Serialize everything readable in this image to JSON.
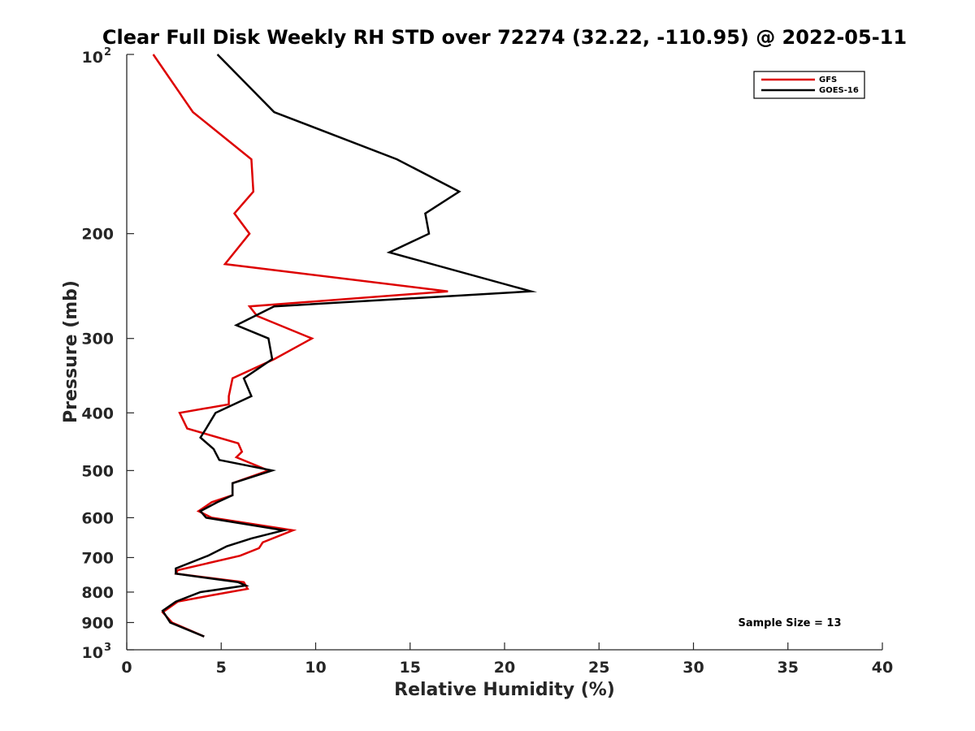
{
  "chart_data": {
    "type": "line",
    "title": "Clear Full Disk Weekly RH STD over 72274 (32.22, -110.95) @ 2022-05-11",
    "xlabel": "Relative Humidity (%)",
    "ylabel": "Pressure (mb)",
    "xlim": [
      0,
      40
    ],
    "ylim": [
      100,
      1000
    ],
    "yscale": "log",
    "y_reversed": true,
    "grid": false,
    "legend_position": "top-right",
    "x_ticks": [
      "0",
      "5",
      "10",
      "15",
      "20",
      "25",
      "30",
      "35",
      "40"
    ],
    "x_tick_values": [
      0,
      5,
      10,
      15,
      20,
      25,
      30,
      35,
      40
    ],
    "y_ticks": [
      {
        "value": 100,
        "base": "10",
        "exp": "2"
      },
      {
        "value": 200,
        "label": "200"
      },
      {
        "value": 300,
        "label": "300"
      },
      {
        "value": 400,
        "label": "400"
      },
      {
        "value": 500,
        "label": "500"
      },
      {
        "value": 600,
        "label": "600"
      },
      {
        "value": 700,
        "label": "700"
      },
      {
        "value": 800,
        "label": "800"
      },
      {
        "value": 900,
        "label": "900"
      },
      {
        "value": 1000,
        "base": "10",
        "exp": "3"
      }
    ],
    "annotation": "Sample Size = 13",
    "series": [
      {
        "name": "GFS",
        "color": "#dd0000",
        "points": [
          [
            1.4,
            100
          ],
          [
            3.5,
            125
          ],
          [
            6.6,
            150
          ],
          [
            6.7,
            170
          ],
          [
            5.7,
            185
          ],
          [
            6.5,
            200
          ],
          [
            5.2,
            225
          ],
          [
            17.0,
            250
          ],
          [
            6.5,
            265
          ],
          [
            6.9,
            275
          ],
          [
            9.8,
            300
          ],
          [
            7.8,
            325
          ],
          [
            5.6,
            350
          ],
          [
            5.4,
            375
          ],
          [
            5.4,
            387
          ],
          [
            2.8,
            400
          ],
          [
            3.2,
            425
          ],
          [
            5.9,
            450
          ],
          [
            6.1,
            465
          ],
          [
            5.8,
            475
          ],
          [
            7.5,
            500
          ],
          [
            5.6,
            525
          ],
          [
            5.6,
            550
          ],
          [
            4.5,
            565
          ],
          [
            3.8,
            585
          ],
          [
            4.5,
            600
          ],
          [
            8.8,
            630
          ],
          [
            7.2,
            660
          ],
          [
            7.0,
            675
          ],
          [
            6.0,
            695
          ],
          [
            2.7,
            735
          ],
          [
            2.6,
            745
          ],
          [
            6.2,
            770
          ],
          [
            6.4,
            790
          ],
          [
            4.5,
            810
          ],
          [
            2.7,
            830
          ],
          [
            1.9,
            865
          ],
          [
            2.4,
            900
          ],
          [
            4.1,
            950
          ]
        ]
      },
      {
        "name": "GOES-16",
        "color": "#000000",
        "points": [
          [
            4.8,
            100
          ],
          [
            7.8,
            125
          ],
          [
            14.3,
            150
          ],
          [
            17.6,
            170
          ],
          [
            15.8,
            185
          ],
          [
            16.0,
            200
          ],
          [
            13.9,
            215
          ],
          [
            21.4,
            250
          ],
          [
            7.8,
            265
          ],
          [
            5.8,
            285
          ],
          [
            7.5,
            300
          ],
          [
            7.7,
            325
          ],
          [
            6.2,
            350
          ],
          [
            6.6,
            375
          ],
          [
            4.7,
            400
          ],
          [
            4.2,
            425
          ],
          [
            3.9,
            440
          ],
          [
            4.6,
            460
          ],
          [
            4.9,
            480
          ],
          [
            7.7,
            500
          ],
          [
            5.6,
            525
          ],
          [
            5.6,
            550
          ],
          [
            4.8,
            565
          ],
          [
            3.9,
            585
          ],
          [
            4.2,
            600
          ],
          [
            8.3,
            630
          ],
          [
            6.6,
            650
          ],
          [
            5.3,
            670
          ],
          [
            4.3,
            695
          ],
          [
            2.6,
            730
          ],
          [
            2.6,
            745
          ],
          [
            5.9,
            770
          ],
          [
            6.3,
            780
          ],
          [
            3.9,
            800
          ],
          [
            2.6,
            830
          ],
          [
            1.9,
            860
          ],
          [
            2.3,
            900
          ],
          [
            4.1,
            950
          ]
        ]
      }
    ]
  }
}
